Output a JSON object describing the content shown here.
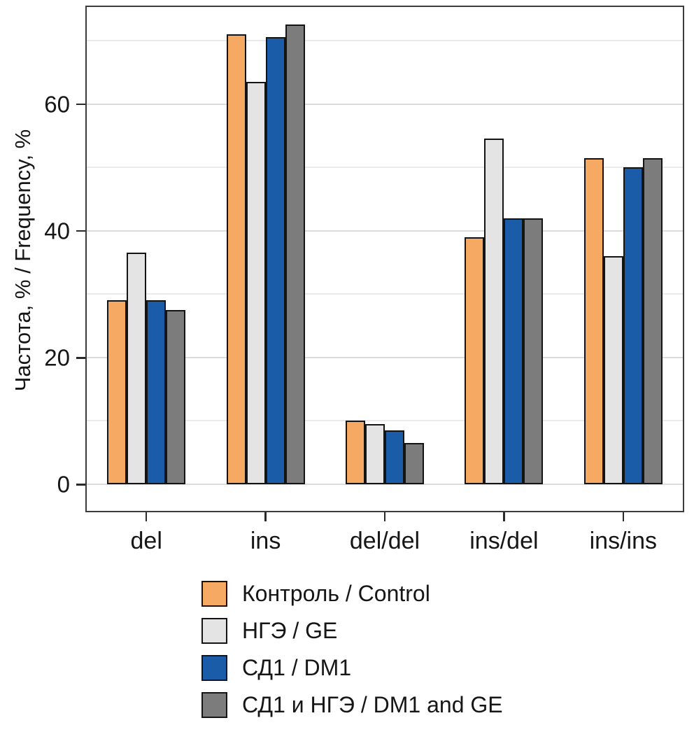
{
  "chart_data": {
    "type": "bar",
    "title": "",
    "xlabel": "",
    "ylabel": "Частота, % / Frequency, %",
    "ylim": [
      -4.2,
      75.3
    ],
    "yticks": [
      0,
      20,
      40,
      60
    ],
    "grid": true,
    "grid_minor_step": 10,
    "grid_major_step": 20,
    "grid_max": 70,
    "legend_position": "bottom",
    "categories": [
      "del",
      "ins",
      "del/del",
      "ins/del",
      "ins/ins"
    ],
    "series": [
      {
        "name": "Контроль / Control",
        "color": "#f5a962",
        "values": [
          29,
          71,
          10,
          39,
          51.5
        ]
      },
      {
        "name": "НГЭ / GE",
        "color": "#e4e4e4",
        "values": [
          36.5,
          63.5,
          9.5,
          54.5,
          36
        ]
      },
      {
        "name": "СД1 / DM1",
        "color": "#1a5ca8",
        "values": [
          29,
          70.5,
          8.5,
          42,
          50
        ]
      },
      {
        "name": "СД1 и НГЭ / DM1 and GE",
        "color": "#7c7c7c",
        "values": [
          27.5,
          72.5,
          6.5,
          42,
          51.5
        ]
      }
    ]
  }
}
